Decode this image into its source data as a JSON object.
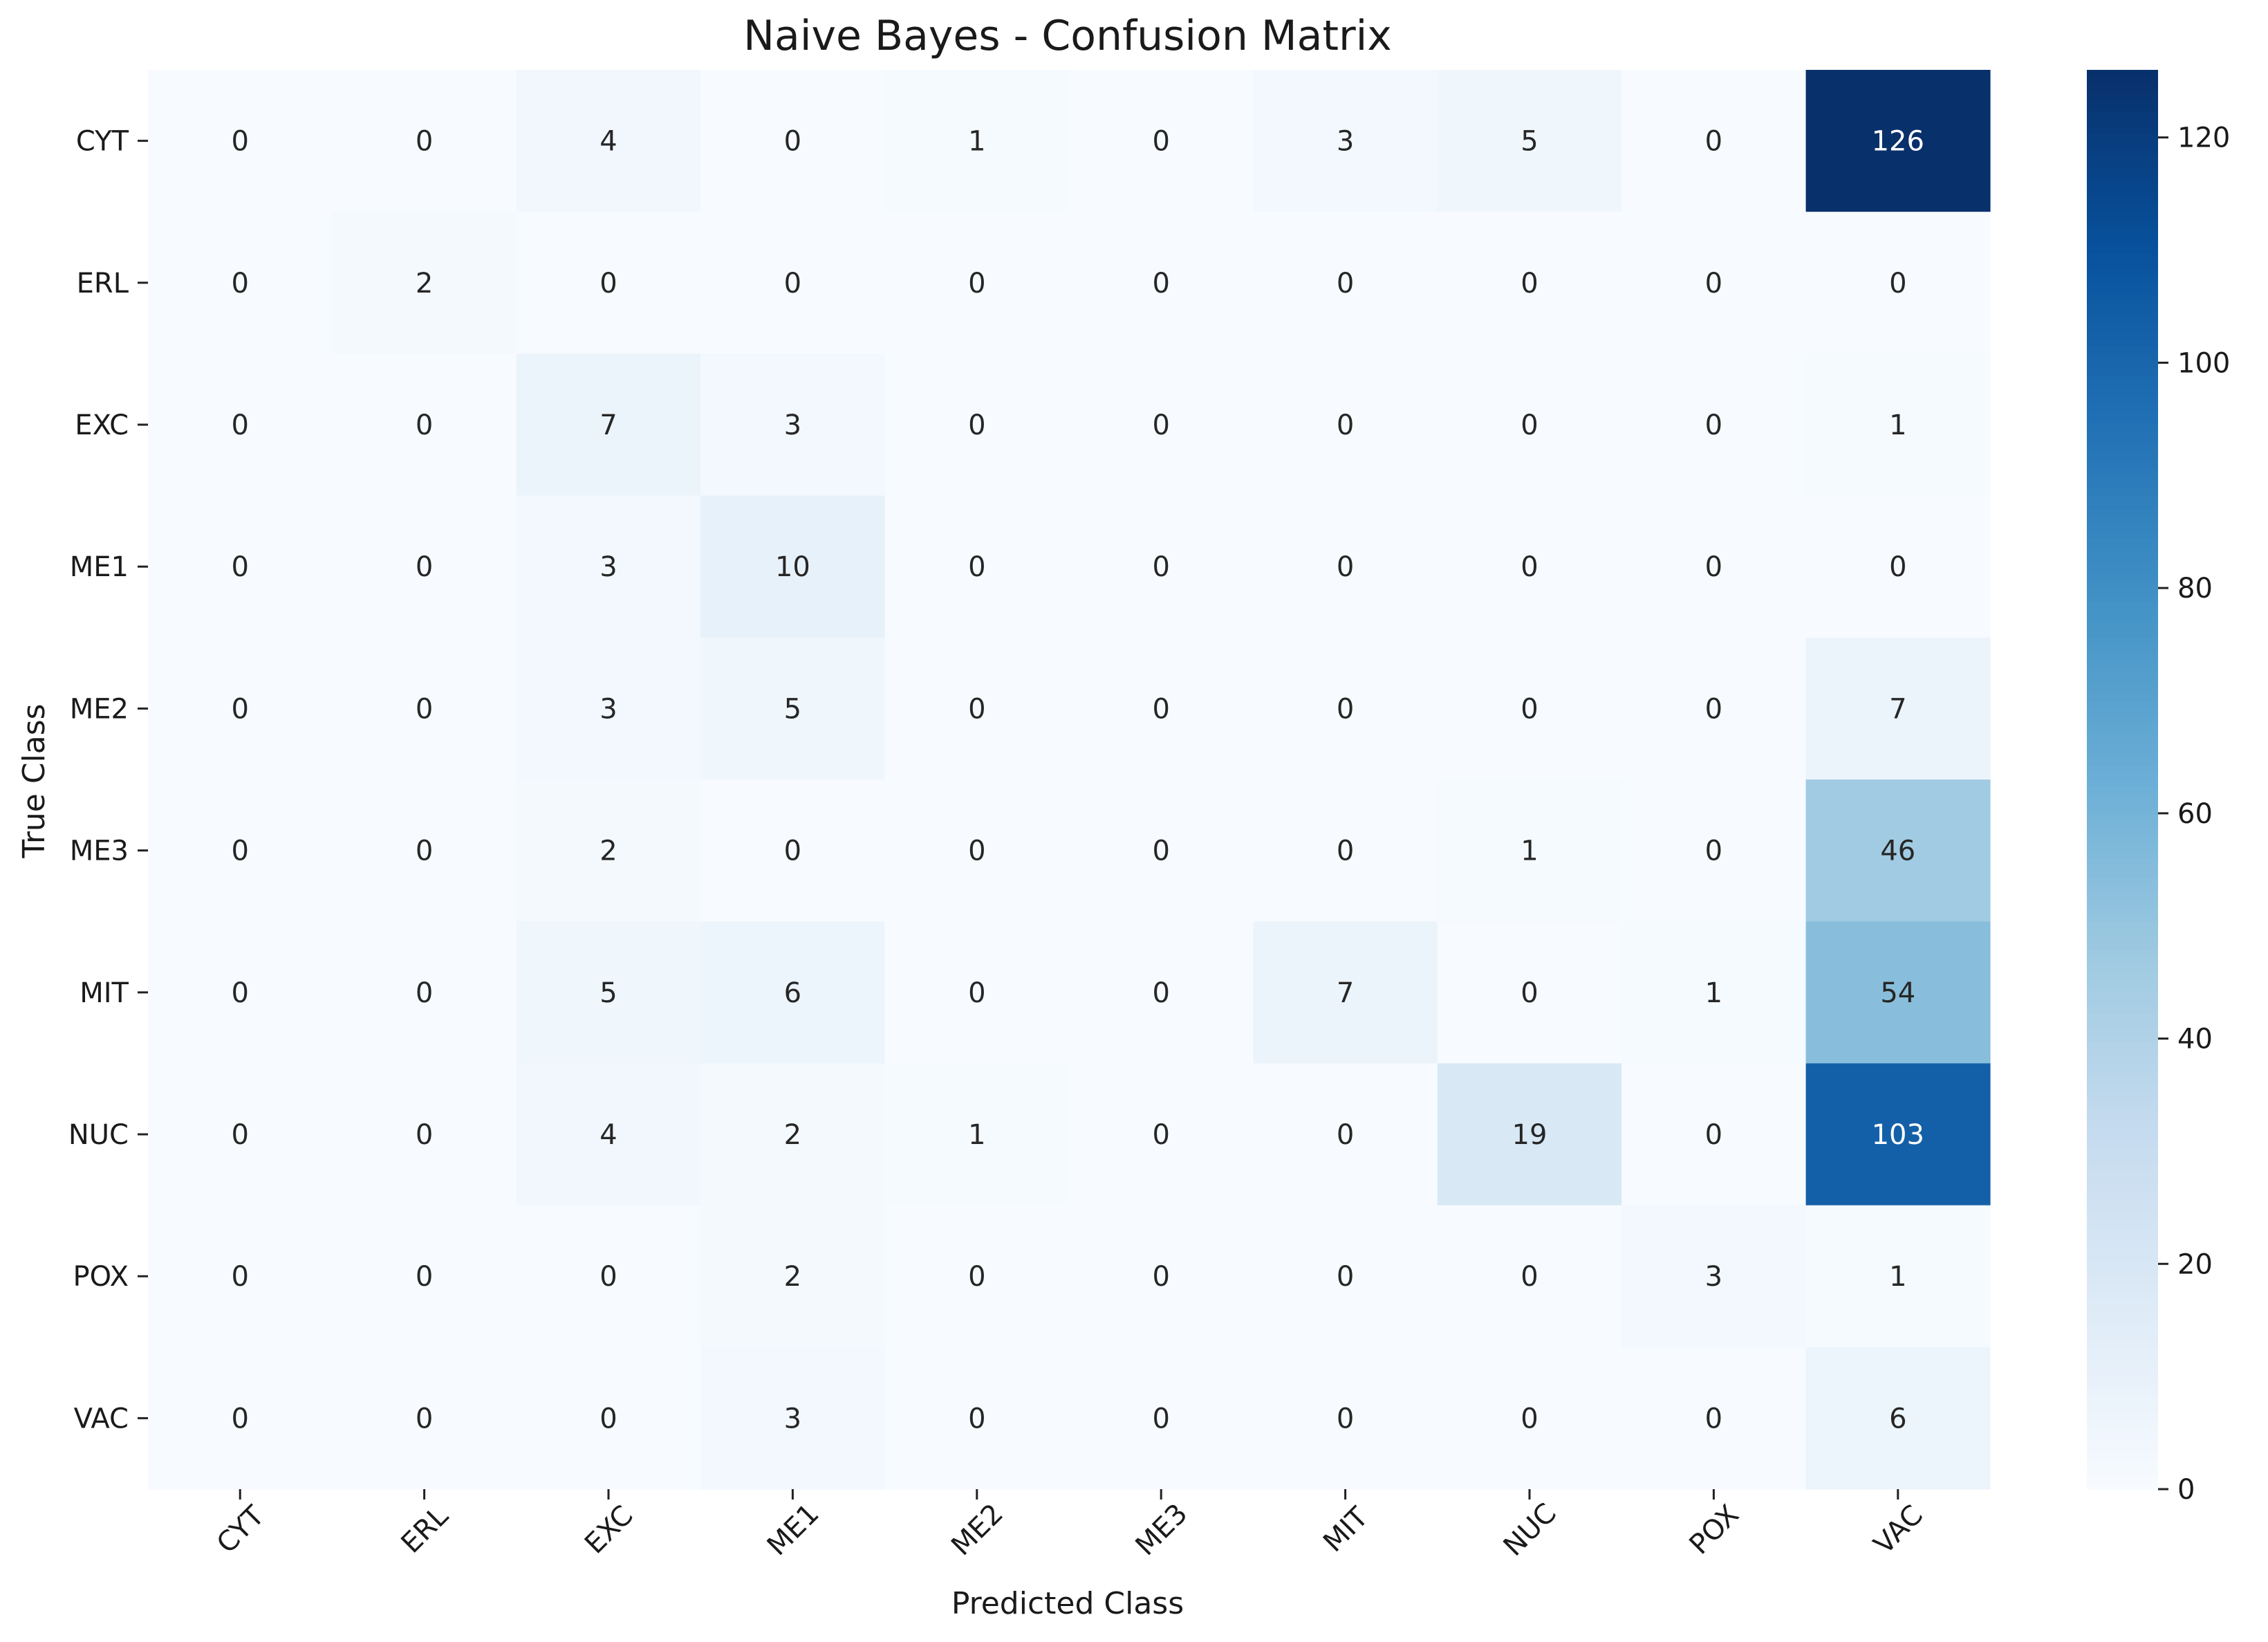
{
  "chart_data": {
    "type": "heatmap",
    "title": "Naive Bayes - Confusion Matrix",
    "xlabel": "Predicted Class",
    "ylabel": "True Class",
    "x_categories": [
      "CYT",
      "ERL",
      "EXC",
      "ME1",
      "ME2",
      "ME3",
      "MIT",
      "NUC",
      "POX",
      "VAC"
    ],
    "y_categories": [
      "CYT",
      "ERL",
      "EXC",
      "ME1",
      "ME2",
      "ME3",
      "MIT",
      "NUC",
      "POX",
      "VAC"
    ],
    "values": [
      [
        0,
        0,
        4,
        0,
        1,
        0,
        3,
        5,
        0,
        126
      ],
      [
        0,
        2,
        0,
        0,
        0,
        0,
        0,
        0,
        0,
        0
      ],
      [
        0,
        0,
        7,
        3,
        0,
        0,
        0,
        0,
        0,
        1
      ],
      [
        0,
        0,
        3,
        10,
        0,
        0,
        0,
        0,
        0,
        0
      ],
      [
        0,
        0,
        3,
        5,
        0,
        0,
        0,
        0,
        0,
        7
      ],
      [
        0,
        0,
        2,
        0,
        0,
        0,
        0,
        1,
        0,
        46
      ],
      [
        0,
        0,
        5,
        6,
        0,
        0,
        7,
        0,
        1,
        54
      ],
      [
        0,
        0,
        4,
        2,
        1,
        0,
        0,
        19,
        0,
        103
      ],
      [
        0,
        0,
        0,
        2,
        0,
        0,
        0,
        0,
        3,
        1
      ],
      [
        0,
        0,
        0,
        3,
        0,
        0,
        0,
        0,
        0,
        6
      ]
    ],
    "colorbar": {
      "min": 0,
      "max": 126,
      "ticks": [
        0,
        20,
        40,
        60,
        80,
        100,
        120
      ],
      "colormap": "Blues"
    },
    "annotations": "cell counts shown in each cell"
  }
}
